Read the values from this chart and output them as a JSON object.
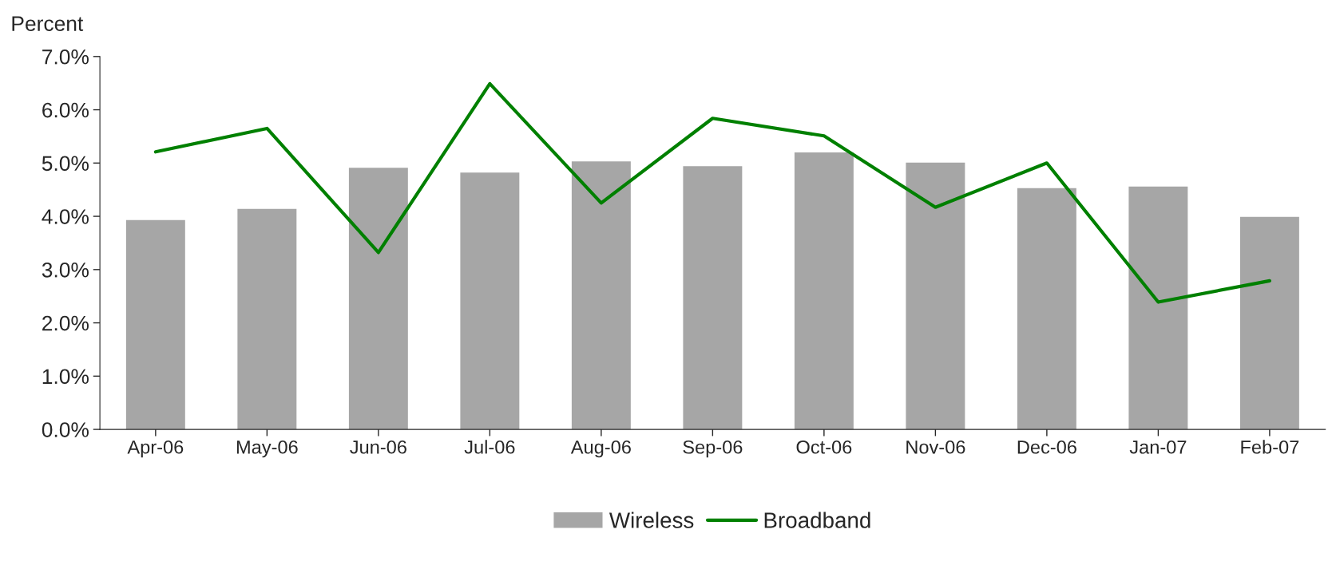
{
  "chart_data": {
    "type": "bar",
    "ylabel": "Percent",
    "categories": [
      "Apr-06",
      "May-06",
      "Jun-06",
      "Jul-06",
      "Aug-06",
      "Sep-06",
      "Oct-06",
      "Nov-06",
      "Dec-06",
      "Jan-07",
      "Feb-07"
    ],
    "series": [
      {
        "name": "Wireless",
        "color": "#a6a6a6",
        "values": [
          3.93,
          4.14,
          4.91,
          4.82,
          5.03,
          4.94,
          5.2,
          5.01,
          4.53,
          4.56,
          3.99
        ]
      },
      {
        "name": "Broadband",
        "type": "line",
        "color": "#008000",
        "values": [
          5.21,
          5.65,
          3.32,
          6.49,
          4.25,
          5.84,
          5.51,
          4.17,
          5.0,
          2.39,
          2.79
        ]
      }
    ],
    "ylim": [
      0,
      7
    ],
    "yticks": [
      {
        "value": 0,
        "label": "0.0%"
      },
      {
        "value": 1,
        "label": "1.0%"
      },
      {
        "value": 2,
        "label": "2.0%"
      },
      {
        "value": 3,
        "label": "3.0%"
      },
      {
        "value": 4,
        "label": "4.0%"
      },
      {
        "value": 5,
        "label": "5.0%"
      },
      {
        "value": 6,
        "label": "6.0%"
      },
      {
        "value": 7,
        "label": "7.0%"
      }
    ],
    "grid": false,
    "legend": "bottom",
    "marker": "none",
    "line_style": "solid"
  }
}
